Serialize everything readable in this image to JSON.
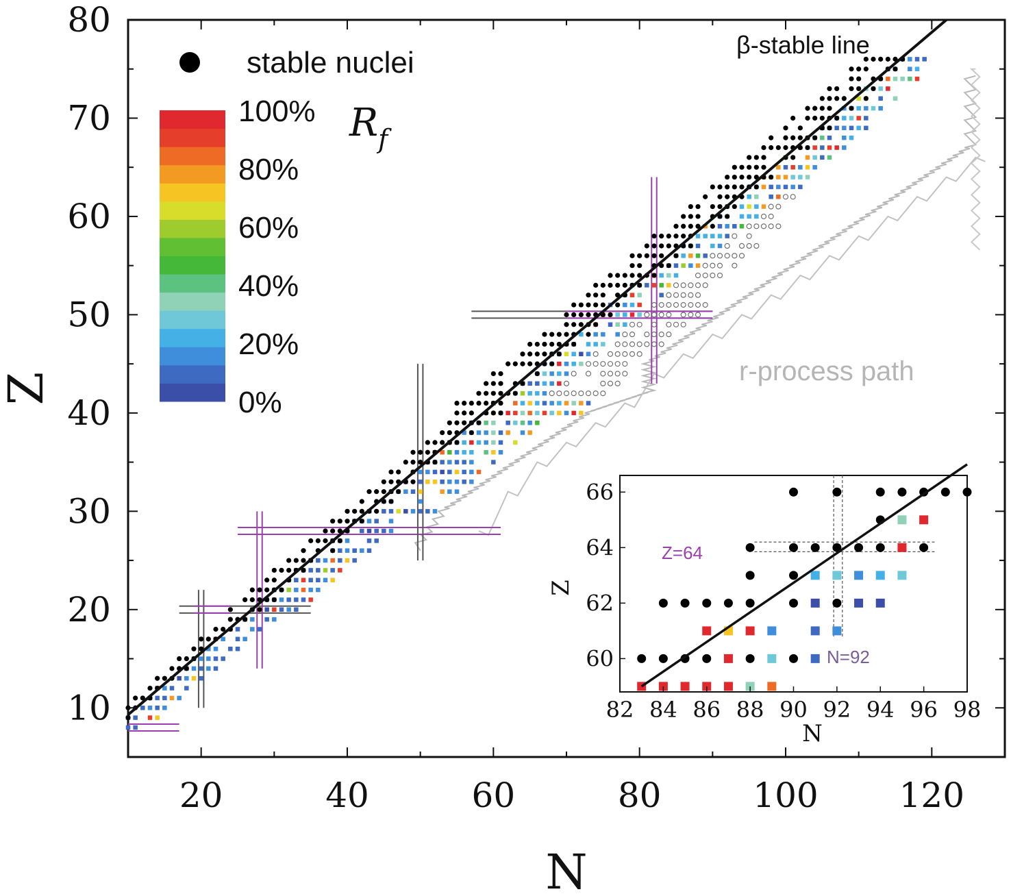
{
  "chart_data": [
    {
      "type": "scatter",
      "xlabel": "N",
      "ylabel": "Z",
      "xlim": [
        10,
        130
      ],
      "ylim": [
        5,
        80
      ],
      "x_ticks": [
        20,
        40,
        60,
        80,
        100,
        120
      ],
      "y_ticks": [
        10,
        20,
        30,
        40,
        50,
        60,
        70,
        80
      ],
      "legend": {
        "marker_label": "stable nuclei",
        "placement": "top-left"
      },
      "colorbar": {
        "label": "R",
        "label_sub": "f",
        "tick_labels": [
          "100%",
          "80%",
          "60%",
          "40%",
          "20%",
          "0%"
        ],
        "tick_values": [
          100,
          80,
          60,
          40,
          20,
          0
        ],
        "colors": [
          "#3c4fa8",
          "#3e6ac2",
          "#3f8edb",
          "#45b0e6",
          "#6fc8d8",
          "#8fd2b8",
          "#5cc27f",
          "#45b83a",
          "#60bf33",
          "#9ecb2e",
          "#d8dc2a",
          "#f6c523",
          "#f39a22",
          "#ee6b25",
          "#e53f2b",
          "#e0282f"
        ]
      },
      "annotations": {
        "beta_line": "β-stable line",
        "rprocess": "r-process path"
      },
      "beta_line": {
        "x": [
          10,
          122
        ],
        "y": [
          9.3,
          80
        ]
      },
      "magic_numbers": [
        8,
        20,
        28,
        50,
        82
      ],
      "stable_nuclei": {
        "z_min": 6,
        "z_max": 76
      },
      "rprocess_path": [
        [
          50,
          26
        ],
        [
          54,
          30
        ],
        [
          58,
          32
        ],
        [
          62,
          34
        ],
        [
          66,
          36
        ],
        [
          70,
          38
        ],
        [
          74,
          40
        ],
        [
          78,
          41
        ],
        [
          82,
          42
        ],
        [
          82,
          45
        ],
        [
          86,
          47
        ],
        [
          90,
          49
        ],
        [
          94,
          51
        ],
        [
          98,
          53
        ],
        [
          102,
          55
        ],
        [
          106,
          57
        ],
        [
          110,
          59
        ],
        [
          114,
          61
        ],
        [
          118,
          63
        ],
        [
          122,
          65
        ],
        [
          126,
          67
        ],
        [
          126,
          74
        ]
      ],
      "series": [
        {
          "name": "stable nuclei",
          "marker": "filled-circle"
        },
        {
          "name": "R_f",
          "marker": "square"
        }
      ]
    },
    {
      "type": "scatter",
      "xlabel": "N",
      "ylabel": "Z",
      "xlim": [
        82,
        98
      ],
      "ylim": [
        58.8,
        66.6
      ],
      "x_ticks": [
        82,
        84,
        86,
        88,
        90,
        92,
        94,
        96,
        98
      ],
      "y_ticks": [
        60,
        62,
        64,
        66
      ],
      "annotations": {
        "z_line": "Z=64",
        "n_line": "N=92"
      },
      "beta_line": {
        "x": [
          83,
          98
        ],
        "y": [
          59.0,
          67.0
        ]
      },
      "stable_points": [
        [
          83,
          60
        ],
        [
          84,
          60
        ],
        [
          85,
          60
        ],
        [
          86,
          60
        ],
        [
          88,
          60
        ],
        [
          90,
          60
        ],
        [
          84,
          62
        ],
        [
          85,
          62
        ],
        [
          86,
          62
        ],
        [
          87,
          62
        ],
        [
          88,
          62
        ],
        [
          90,
          62
        ],
        [
          92,
          62
        ],
        [
          88,
          63
        ],
        [
          90,
          63
        ],
        [
          88,
          64
        ],
        [
          90,
          64
        ],
        [
          91,
          64
        ],
        [
          92,
          64
        ],
        [
          93,
          64
        ],
        [
          94,
          64
        ],
        [
          96,
          64
        ],
        [
          94,
          65
        ],
        [
          90,
          66
        ],
        [
          92,
          66
        ],
        [
          94,
          66
        ],
        [
          95,
          66
        ],
        [
          96,
          66
        ],
        [
          97,
          66
        ],
        [
          98,
          66
        ]
      ],
      "rf_points": [
        [
          83,
          59,
          100
        ],
        [
          84,
          59,
          100
        ],
        [
          85,
          59,
          100
        ],
        [
          86,
          59,
          100
        ],
        [
          87,
          59,
          100
        ],
        [
          88,
          59,
          30
        ],
        [
          89,
          59,
          85
        ],
        [
          86,
          61,
          100
        ],
        [
          87,
          61,
          70
        ],
        [
          88,
          61,
          100
        ],
        [
          89,
          61,
          15
        ],
        [
          87,
          60,
          100
        ],
        [
          89,
          60,
          25
        ],
        [
          91,
          60,
          5
        ],
        [
          91,
          61,
          5
        ],
        [
          92,
          61,
          15
        ],
        [
          91,
          62,
          3
        ],
        [
          93,
          62,
          3
        ],
        [
          94,
          62,
          3
        ],
        [
          91,
          63,
          22
        ],
        [
          92,
          63,
          28
        ],
        [
          93,
          63,
          12
        ],
        [
          94,
          63,
          22
        ],
        [
          95,
          63,
          25
        ],
        [
          95,
          64,
          100
        ],
        [
          95,
          65,
          30
        ],
        [
          96,
          65,
          100
        ]
      ]
    }
  ]
}
